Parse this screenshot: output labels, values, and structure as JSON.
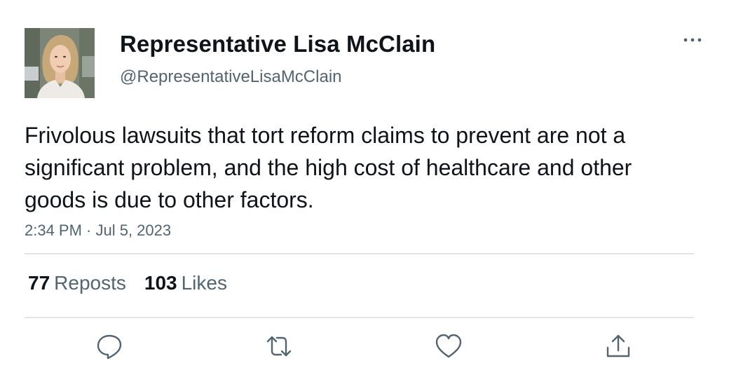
{
  "author": {
    "display_name": "Representative Lisa McClain",
    "handle": "@RepresentativeLisaMcClain"
  },
  "tweet": {
    "text": "Frivolous lawsuits that tort reform claims to prevent are not a significant problem, and the high cost of healthcare and other goods is due to other factors.",
    "timestamp": "2:34 PM · Jul 5, 2023"
  },
  "stats": {
    "reposts_count": "77",
    "reposts_label": "Reposts",
    "likes_count": "103",
    "likes_label": "Likes"
  },
  "icons": {
    "more": "more-horizontal-icon",
    "reply": "reply-icon",
    "repost": "repost-icon",
    "like": "heart-icon",
    "share": "share-icon"
  },
  "colors": {
    "text": "#0f1419",
    "secondary": "#536471",
    "divider": "#e1e5e8"
  }
}
